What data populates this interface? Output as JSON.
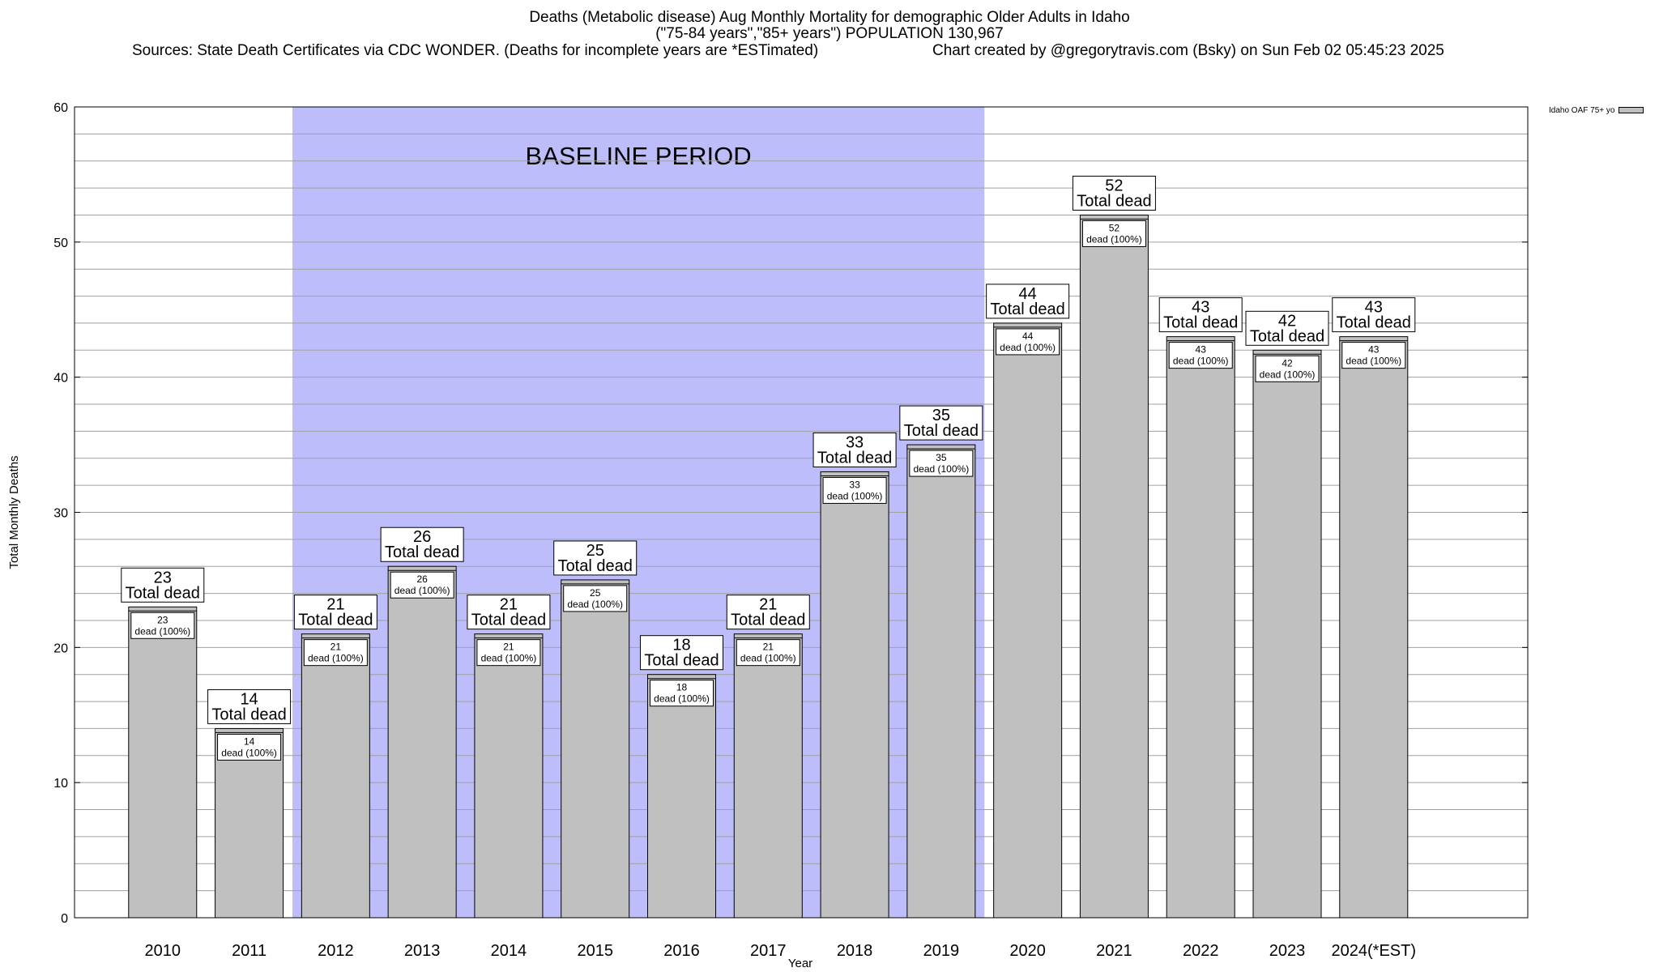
{
  "header": {
    "title_line1": "Deaths (Metabolic disease) Aug Monthly Mortality for demographic Older Adults in Idaho",
    "title_line2": "(\"75-84 years\",\"85+ years\") POPULATION 130,967",
    "sources": "Sources: State Death Certificates via CDC WONDER. (Deaths for incomplete years are *ESTimated)",
    "credit": "Chart created by @gregorytravis.com (Bsky) on Sun Feb 02 05:45:23 2025"
  },
  "chart_data": {
    "type": "bar",
    "title": "Deaths (Metabolic disease) Aug Monthly Mortality for demographic Older Adults in Idaho",
    "xlabel": "Year",
    "ylabel": "Total Monthly Deaths",
    "ylim": [
      0,
      60
    ],
    "yticks": [
      0,
      10,
      20,
      30,
      40,
      50,
      60
    ],
    "categories": [
      "2010",
      "2011",
      "2012",
      "2013",
      "2014",
      "2015",
      "2016",
      "2017",
      "2018",
      "2019",
      "2020",
      "2021",
      "2022",
      "2023",
      "2024(*EST)"
    ],
    "series": [
      {
        "name": "Idaho OAF 75+ yo",
        "values": [
          23,
          14,
          21,
          26,
          21,
          25,
          18,
          21,
          33,
          35,
          44,
          52,
          43,
          42,
          43
        ]
      }
    ],
    "top_label_suffix": "Total dead",
    "inner_label_suffix": "dead (100%)",
    "baseline_label": "BASELINE PERIOD",
    "baseline_range": [
      "2012",
      "2019"
    ],
    "grid": true,
    "legend_position": "top-right",
    "colors": {
      "bar": "#c0c0c0",
      "baseline": "#bdbdfb",
      "grid": "#a0a0a0"
    }
  }
}
